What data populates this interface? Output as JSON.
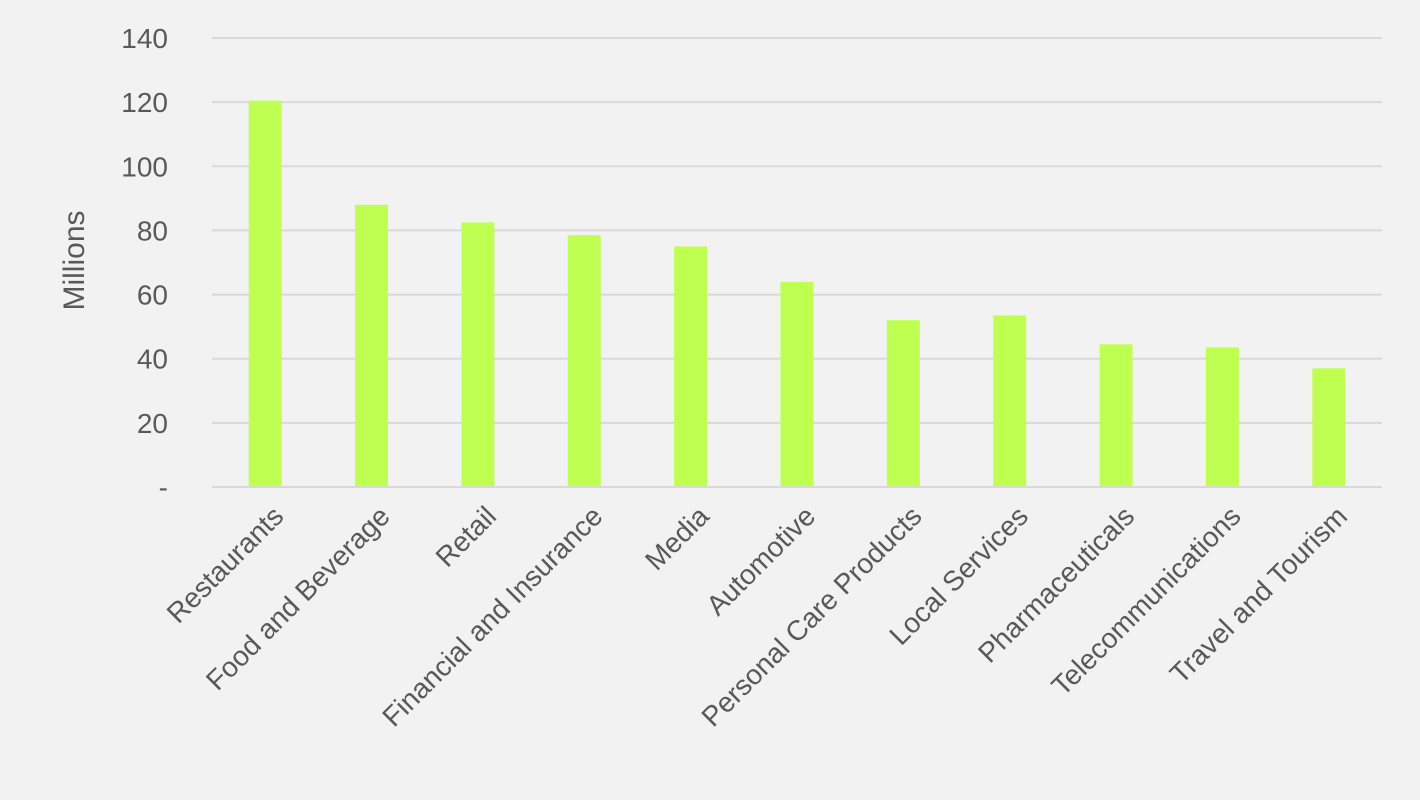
{
  "chart_data": {
    "type": "bar",
    "title": "",
    "xlabel": "",
    "ylabel": "Millions",
    "ylim": [
      0,
      140
    ],
    "yticks": [
      0,
      20,
      40,
      60,
      80,
      100,
      120,
      140
    ],
    "ytick_labels": [
      "-",
      "20",
      "40",
      "60",
      "80",
      "100",
      "120",
      "140"
    ],
    "grid": true,
    "legend": "none",
    "bar_color": "#bfff4f",
    "grid_color": "#d9d9d9",
    "text_color": "#595959",
    "categories": [
      "Restaurants",
      "Food and Beverage",
      "Retail",
      "Financial and Insurance",
      "Media",
      "Automotive",
      "Personal Care Products",
      "Local Services",
      "Pharmaceuticals",
      "Telecommunications",
      "Travel and Tourism"
    ],
    "values": [
      120.5,
      88,
      82.5,
      78.5,
      75,
      64,
      52,
      53.5,
      44.5,
      43.5,
      37
    ]
  }
}
